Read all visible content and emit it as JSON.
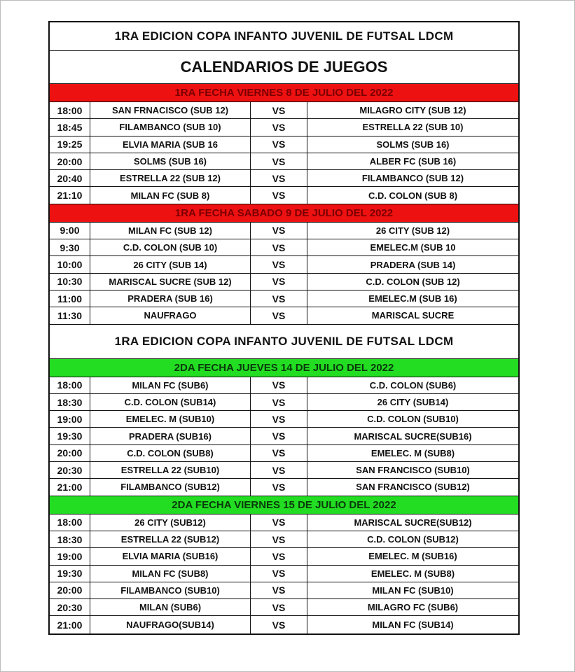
{
  "title": "1RA EDICION COPA INFANTO JUVENIL DE FUTSAL LDCM",
  "subtitle": "CALENDARIOS DE JUEGOS",
  "colors": {
    "red_header": "#ee1111",
    "green_header": "#22dd22"
  },
  "sections": [
    {
      "header": "1RA FECHA VIERNES 8 DE JULIO DEL 2022",
      "color": "red",
      "matches": [
        {
          "time": "18:00",
          "home": "SAN FRNACISCO (SUB 12)",
          "vs": "VS",
          "away": "MILAGRO CITY (SUB 12)"
        },
        {
          "time": "18:45",
          "home": "FILAMBANCO (SUB 10)",
          "vs": "VS",
          "away": "ESTRELLA 22 (SUB 10)"
        },
        {
          "time": "19:25",
          "home": "ELVIA MARIA (SUB 16",
          "vs": "VS",
          "away": "SOLMS (SUB 16)"
        },
        {
          "time": "20:00",
          "home": "SOLMS (SUB 16)",
          "vs": "VS",
          "away": "ALBER FC (SUB 16)"
        },
        {
          "time": "20:40",
          "home": "ESTRELLA 22 (SUB 12)",
          "vs": "VS",
          "away": "FILAMBANCO (SUB 12)"
        },
        {
          "time": "21:10",
          "home": "MILAN FC (SUB 8)",
          "vs": "VS",
          "away": "C.D. COLON (SUB 8)"
        }
      ]
    },
    {
      "header": "1RA FECHA SABADO 9 DE JULIO DEL 2022",
      "color": "red",
      "matches": [
        {
          "time": "9:00",
          "home": "MILAN FC (SUB 12)",
          "vs": "VS",
          "away": "26 CITY (SUB 12)"
        },
        {
          "time": "9:30",
          "home": "C.D. COLON (SUB 10)",
          "vs": "VS",
          "away": "EMELEC.M (SUB 10"
        },
        {
          "time": "10:00",
          "home": "26 CITY (SUB 14)",
          "vs": "VS",
          "away": "PRADERA (SUB 14)"
        },
        {
          "time": "10:30",
          "home": "MARISCAL SUCRE (SUB 12)",
          "vs": "VS",
          "away": "C.D. COLON (SUB 12)"
        },
        {
          "time": "11:00",
          "home": "PRADERA (SUB 16)",
          "vs": "VS",
          "away": "EMELEC.M (SUB 16)"
        },
        {
          "time": "11:30",
          "home": "NAUFRAGO",
          "vs": "VS",
          "away": "MARISCAL SUCRE"
        }
      ]
    },
    {
      "header": "2DA FECHA JUEVES 14 DE JULIO DEL 2022",
      "color": "green",
      "title_before": "1RA EDICION COPA INFANTO JUVENIL DE FUTSAL LDCM",
      "matches": [
        {
          "time": "18:00",
          "home": "MILAN FC (SUB6)",
          "vs": "VS",
          "away": "C.D. COLON (SUB6)"
        },
        {
          "time": "18:30",
          "home": "C.D. COLON (SUB14)",
          "vs": "VS",
          "away": "26 CITY (SUB14)"
        },
        {
          "time": "19:00",
          "home": "EMELEC. M (SUB10)",
          "vs": "VS",
          "away": "C.D. COLON (SUB10)"
        },
        {
          "time": "19:30",
          "home": "PRADERA (SUB16)",
          "vs": "VS",
          "away": "MARISCAL SUCRE(SUB16)"
        },
        {
          "time": "20:00",
          "home": "C.D. COLON (SUB8)",
          "vs": "VS",
          "away": "EMELEC. M (SUB8)"
        },
        {
          "time": "20:30",
          "home": "ESTRELLA 22 (SUB10)",
          "vs": "VS",
          "away": "SAN FRANCISCO (SUB10)"
        },
        {
          "time": "21:00",
          "home": "FILAMBANCO (SUB12)",
          "vs": "VS",
          "away": "SAN FRANCISCO (SUB12)"
        }
      ]
    },
    {
      "header": "2DA FECHA VIERNES 15 DE JULIO DEL 2022",
      "color": "green",
      "matches": [
        {
          "time": "18:00",
          "home": "26 CITY (SUB12)",
          "vs": "VS",
          "away": "MARISCAL SUCRE(SUB12)"
        },
        {
          "time": "18:30",
          "home": "ESTRELLA 22 (SUB12)",
          "vs": "VS",
          "away": "C.D. COLON (SUB12)"
        },
        {
          "time": "19:00",
          "home": "ELVIA MARIA (SUB16)",
          "vs": "VS",
          "away": "EMELEC. M (SUB16)"
        },
        {
          "time": "19:30",
          "home": "MILAN FC (SUB8)",
          "vs": "VS",
          "away": "EMELEC. M (SUB8)"
        },
        {
          "time": "20:00",
          "home": "FILAMBANCO (SUB10)",
          "vs": "VS",
          "away": "MILAN FC (SUB10)"
        },
        {
          "time": "20:30",
          "home": "MILAN (SUB6)",
          "vs": "VS",
          "away": "MILAGRO FC (SUB6)"
        },
        {
          "time": "21:00",
          "home": "NAUFRAGO(SUB14)",
          "vs": "VS",
          "away": "MILAN FC (SUB14)"
        }
      ]
    }
  ]
}
